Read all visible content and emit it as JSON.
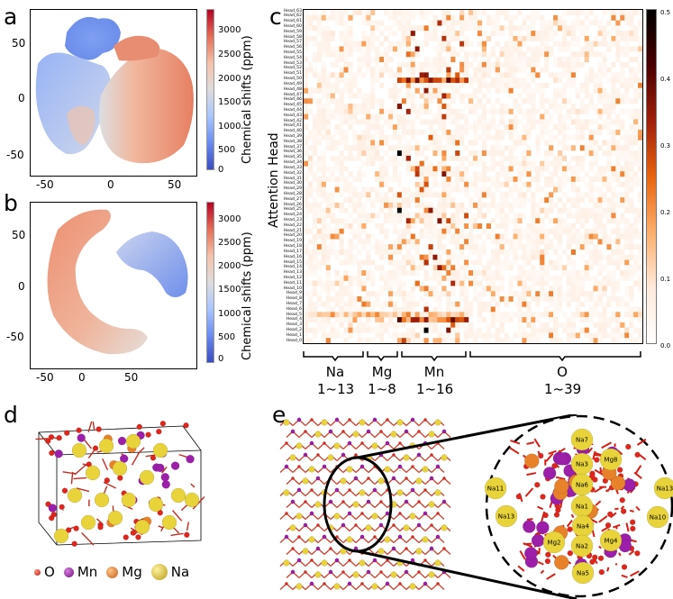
{
  "panels": {
    "a": "a",
    "b": "b",
    "c": "c",
    "d": "d",
    "e": "e"
  },
  "tsne_a": {
    "x_ticks": [
      "-50",
      "0",
      "50"
    ],
    "y_ticks": [
      "50",
      "0",
      "-50"
    ],
    "colorbar_label": "Chemical shifts (ppm)",
    "colorbar_ticks": [
      "3000",
      "2500",
      "2000",
      "1500",
      "1000",
      "500",
      "0"
    ]
  },
  "tsne_b": {
    "x_ticks": [
      "-50",
      "0",
      "50"
    ],
    "y_ticks": [
      "50",
      "0",
      "-50"
    ],
    "colorbar_label": "Chemical shifts (ppm)",
    "colorbar_ticks": [
      "3000",
      "2500",
      "2000",
      "1500",
      "1000",
      "500",
      "0"
    ]
  },
  "heatmap": {
    "ylabel": "Attention Head",
    "colorbar_ticks": [
      "0.5",
      "0.4",
      "0.3",
      "0.2",
      "0.1",
      "0.0"
    ],
    "groups": [
      {
        "element": "Na",
        "range": "1~13"
      },
      {
        "element": "Mg",
        "range": "1~8"
      },
      {
        "element": "Mn",
        "range": "1~16"
      },
      {
        "element": "O",
        "range": "1~39"
      }
    ],
    "head_labels": [
      "Head_63",
      "Head_62",
      "Head_61",
      "Head_60",
      "Head_59",
      "Head_58",
      "Head_57",
      "Head_56",
      "Head_55",
      "Head_54",
      "Head_53",
      "Head_52",
      "Head_51",
      "Head_50",
      "Head_49",
      "Head_48",
      "Head_47",
      "Head_46",
      "Head_45",
      "Head_44",
      "Head_43",
      "Head_42",
      "Head_41",
      "Head_40",
      "Head_39",
      "Head_38",
      "Head_37",
      "Head_36",
      "Head_35",
      "Head_34",
      "Head_33",
      "Head_32",
      "Head_31",
      "Head_30",
      "Head_29",
      "Head_28",
      "Head_27",
      "Head_26",
      "Head_25",
      "Head_24",
      "Head_23",
      "Head_22",
      "Head_21",
      "Head_20",
      "Head_19",
      "Head_18",
      "Head_17",
      "Head_16",
      "Head_15",
      "Head_14",
      "Head_13",
      "Head_12",
      "Head_11",
      "Head_10",
      "Head_9",
      "Head_8",
      "Head_7",
      "Head_6",
      "Head_5",
      "Head_4",
      "Head_3",
      "Head_2",
      "Head_1",
      "Head_0"
    ]
  },
  "legend": {
    "items": [
      {
        "label": "O",
        "color": "#e0261c"
      },
      {
        "label": "Mn",
        "color": "#9b1fa8"
      },
      {
        "label": "Mg",
        "color": "#e8822a"
      },
      {
        "label": "Na",
        "color": "#e8d43a"
      }
    ]
  },
  "cluster_labels": [
    "Na7",
    "Na3",
    "Mg8",
    "Na6",
    "Na11",
    "Na1",
    "Na13",
    "Na13",
    "Na4",
    "Na10",
    "Mg2",
    "Na2",
    "Mg4",
    "Na5"
  ]
}
